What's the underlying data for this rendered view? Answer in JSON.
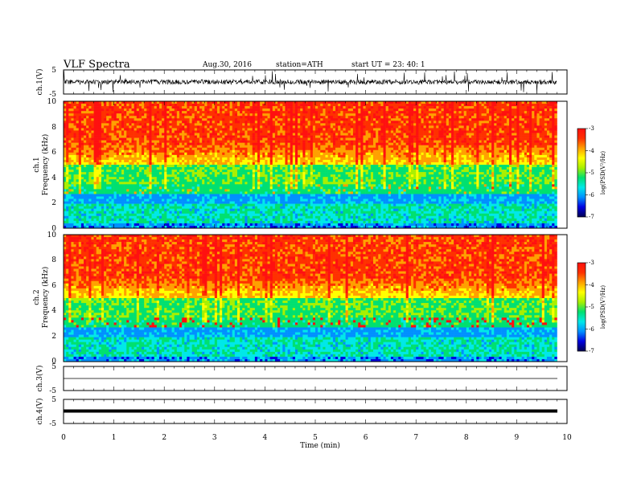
{
  "header": {
    "title": "VLF  Spectra",
    "date": "Aug.30, 2016",
    "station": "station=ATH",
    "start": "start  UT  =   23: 40: 1"
  },
  "colors": {
    "spectrogram_scale": [
      "#000050",
      "#0000e0",
      "#0090ff",
      "#00e8e8",
      "#00e070",
      "#a8f000",
      "#ffff00",
      "#ffa000",
      "#ff3000",
      "#ff1010",
      "#ffffff"
    ]
  },
  "chart_data": [
    {
      "type": "line",
      "panel": "ch1_waveform",
      "ylabel": "ch.1(V)",
      "yticks": [
        "5",
        "-5"
      ],
      "ylim": [
        -5,
        5
      ],
      "xlim": [
        0,
        10
      ],
      "data_end_min": 9.8
    },
    {
      "type": "heatmap",
      "panel": "ch1_spectrogram",
      "ylabel": "ch.1",
      "ylabel2": "Frequency  (kHz)",
      "yticks": [
        "0",
        "2",
        "4",
        "6",
        "8",
        "10"
      ],
      "ylim": [
        0,
        10
      ],
      "xlim": [
        0,
        10
      ],
      "data_end_min": 9.8,
      "colorbar": {
        "label": "log(PSD(V²/Hz)",
        "range": [
          -7,
          -3
        ],
        "ticks": [
          "-3",
          "-4",
          "-5",
          "-6",
          "-7"
        ]
      }
    },
    {
      "type": "heatmap",
      "panel": "ch2_spectrogram",
      "ylabel": "ch.2",
      "ylabel2": "Frequency  (kHz)",
      "yticks": [
        "0",
        "2",
        "4",
        "6",
        "8",
        "10"
      ],
      "ylim": [
        0,
        10
      ],
      "xlim": [
        0,
        10
      ],
      "data_end_min": 9.8,
      "colorbar": {
        "label": "log(PSD(V²/Hz)",
        "range": [
          -7,
          -3
        ],
        "ticks": [
          "-3",
          "-4",
          "-5",
          "-6",
          "-7"
        ]
      }
    },
    {
      "type": "line",
      "panel": "ch3_waveform",
      "ylabel": "ch.3(V)",
      "yticks": [
        "5",
        "-5"
      ],
      "ylim": [
        -5,
        5
      ],
      "xlim": [
        0,
        10
      ]
    },
    {
      "type": "line",
      "panel": "ch4_waveform",
      "ylabel": "ch.4(V)",
      "yticks": [
        "5",
        "-5"
      ],
      "ylim": [
        -5,
        5
      ],
      "xlim": [
        0,
        10
      ]
    }
  ],
  "xaxis": {
    "label": "Time  (min)",
    "ticks": [
      "0",
      "1",
      "2",
      "3",
      "4",
      "5",
      "6",
      "7",
      "8",
      "9",
      "10"
    ]
  }
}
